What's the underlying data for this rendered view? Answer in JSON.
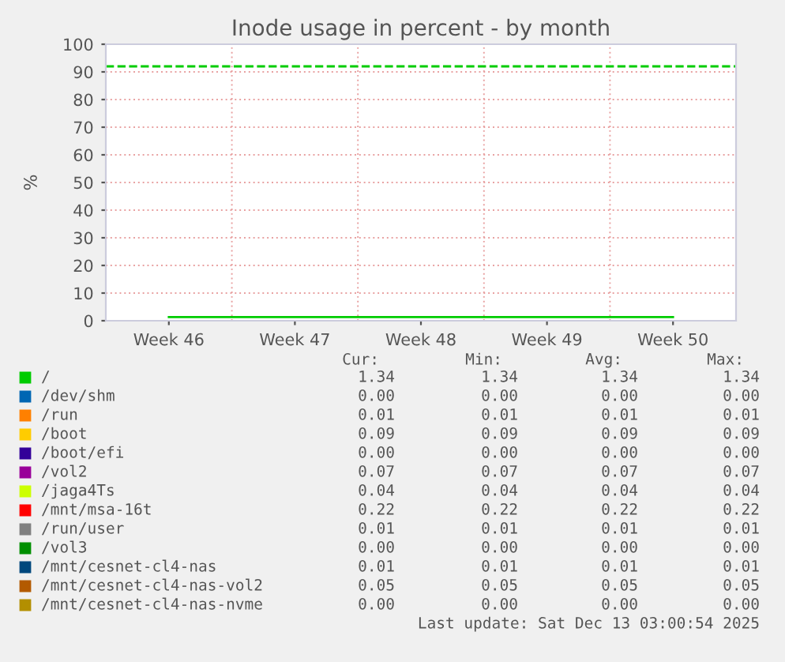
{
  "chart_data": {
    "type": "line",
    "title": "Inode usage in percent - by month",
    "ylabel": "%",
    "categories": [
      "Week 46",
      "Week 47",
      "Week 48",
      "Week 49",
      "Week 50"
    ],
    "ylim": [
      0,
      100
    ],
    "yticks": [
      0,
      10,
      20,
      30,
      40,
      50,
      60,
      70,
      80,
      90,
      100
    ],
    "grid": true,
    "legend": "bottom",
    "line_style": "solid",
    "ref_lines": [
      {
        "axis": "y",
        "value": 92,
        "color": "#00cc00",
        "line_style": "dashed"
      }
    ],
    "series": [
      {
        "name": "/",
        "color": "#00cc00",
        "values": [
          1.34,
          1.34,
          1.34,
          1.34,
          1.34
        ]
      },
      {
        "name": "/dev/shm",
        "color": "#0066b3",
        "values": [
          null,
          null,
          null,
          null,
          null
        ]
      },
      {
        "name": "/run",
        "color": "#ff8000",
        "values": [
          null,
          null,
          null,
          null,
          null
        ]
      },
      {
        "name": "/boot",
        "color": "#ffcc00",
        "values": [
          null,
          null,
          null,
          null,
          null
        ]
      },
      {
        "name": "/boot/efi",
        "color": "#330099",
        "values": [
          null,
          null,
          null,
          null,
          null
        ]
      },
      {
        "name": "/vol2",
        "color": "#990099",
        "values": [
          null,
          null,
          null,
          null,
          null
        ]
      },
      {
        "name": "/jaga4Ts",
        "color": "#ccff00",
        "values": [
          null,
          null,
          null,
          null,
          null
        ]
      },
      {
        "name": "/mnt/msa-16t",
        "color": "#ff0000",
        "values": [
          null,
          null,
          null,
          null,
          null
        ]
      },
      {
        "name": "/run/user",
        "color": "#808080",
        "values": [
          null,
          null,
          null,
          null,
          null
        ]
      },
      {
        "name": "/vol3",
        "color": "#008f00",
        "values": [
          null,
          null,
          null,
          null,
          null
        ]
      },
      {
        "name": "/mnt/cesnet-cl4-nas",
        "color": "#00487d",
        "values": [
          null,
          null,
          null,
          null,
          null
        ]
      },
      {
        "name": "/mnt/cesnet-cl4-nas-vol2",
        "color": "#b35a00",
        "values": [
          null,
          null,
          null,
          null,
          null
        ]
      },
      {
        "name": "/mnt/cesnet-cl4-nas-nvme",
        "color": "#b38f00",
        "values": [
          null,
          null,
          null,
          null,
          null
        ]
      }
    ],
    "annotations": [
      "Cur:",
      "Min:",
      "Avg:",
      "Max:",
      "1.34",
      "1.34",
      "1.34",
      "1.34",
      "0.00",
      "0.00",
      "0.00",
      "0.00",
      "0.01",
      "0.01",
      "0.01",
      "0.01",
      "0.09",
      "0.09",
      "0.09",
      "0.09",
      "0.00",
      "0.00",
      "0.00",
      "0.00",
      "0.07",
      "0.07",
      "0.07",
      "0.07",
      "0.04",
      "0.04",
      "0.04",
      "0.04",
      "0.22",
      "0.22",
      "0.22",
      "0.22",
      "0.01",
      "0.01",
      "0.01",
      "0.01",
      "0.00",
      "0.00",
      "0.00",
      "0.00",
      "0.01",
      "0.01",
      "0.01",
      "0.01",
      "0.05",
      "0.05",
      "0.05",
      "0.05",
      "0.00",
      "0.00",
      "0.00",
      "0.00",
      "Last update: Sat Dec 13 03:00:54 2025"
    ]
  }
}
